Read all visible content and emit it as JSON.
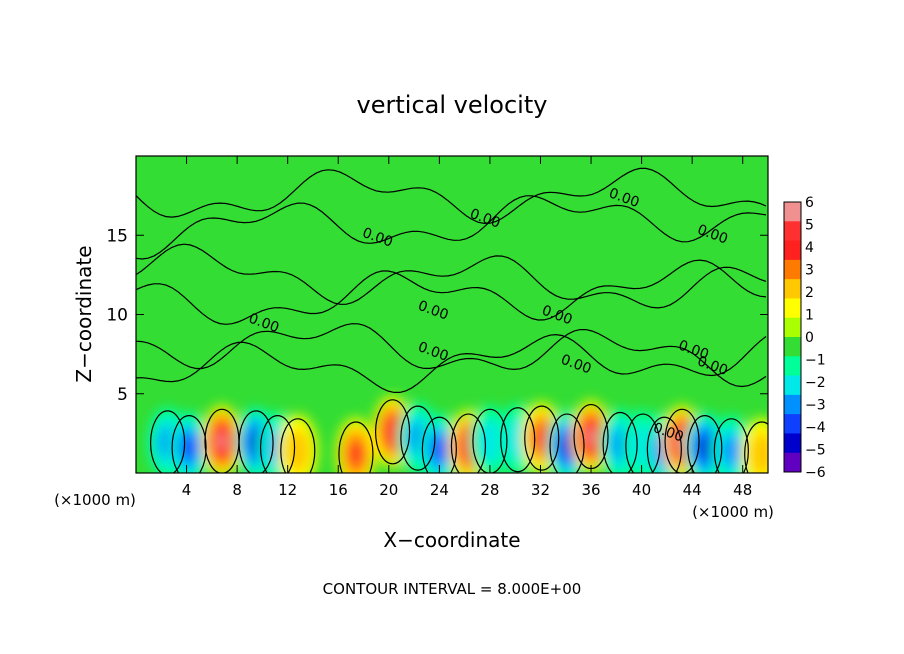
{
  "chart_data": {
    "type": "heatmap",
    "title": "vertical velocity",
    "xlabel": "X−coordinate",
    "ylabel": "Z−coordinate",
    "x_unit_left": "(×1000 m)",
    "x_unit_right": "(×1000 m)",
    "xlim": [
      0,
      50
    ],
    "ylim": [
      0,
      20
    ],
    "x_ticks": [
      4,
      8,
      12,
      16,
      20,
      24,
      28,
      32,
      36,
      40,
      44,
      48
    ],
    "y_ticks": [
      5,
      10,
      15
    ],
    "colorbar": {
      "min": -6,
      "max": 6,
      "tick_labels": [
        "6",
        "5",
        "4",
        "3",
        "2",
        "1",
        "0",
        "−1",
        "−2",
        "−3",
        "−4",
        "−5",
        "−6"
      ],
      "colors": [
        "#f09090",
        "#ff3030",
        "#ff2020",
        "#ff7a00",
        "#ffc800",
        "#ffff00",
        "#aaff00",
        "#33dd33",
        "#00ff99",
        "#00e8e8",
        "#0090ff",
        "#1040ff",
        "#0000cc",
        "#6000c0"
      ]
    },
    "background_value": 0,
    "features": [
      {
        "x": 2.5,
        "z": 1.9,
        "w": -3.0
      },
      {
        "x": 4.2,
        "z": 1.6,
        "w": -3.5
      },
      {
        "x": 6.8,
        "z": 2.0,
        "w": 6.0
      },
      {
        "x": 9.5,
        "z": 1.9,
        "w": -4.5
      },
      {
        "x": 11.2,
        "z": 1.6,
        "w": -3.0
      },
      {
        "x": 12.8,
        "z": 1.4,
        "w": 1.5
      },
      {
        "x": 17.4,
        "z": 1.2,
        "w": 3.5
      },
      {
        "x": 20.3,
        "z": 2.6,
        "w": 5.0
      },
      {
        "x": 22.3,
        "z": 2.2,
        "w": -3.0
      },
      {
        "x": 24.0,
        "z": 1.5,
        "w": -3.5
      },
      {
        "x": 26.3,
        "z": 1.7,
        "w": 5.0
      },
      {
        "x": 28.0,
        "z": 2.0,
        "w": -2.0
      },
      {
        "x": 30.2,
        "z": 2.1,
        "w": -2.0
      },
      {
        "x": 32.1,
        "z": 2.2,
        "w": 4.0
      },
      {
        "x": 34.1,
        "z": 1.7,
        "w": -5.0
      },
      {
        "x": 36.0,
        "z": 2.3,
        "w": 5.5
      },
      {
        "x": 38.3,
        "z": 1.8,
        "w": -3.0
      },
      {
        "x": 40.1,
        "z": 1.7,
        "w": -2.0
      },
      {
        "x": 41.8,
        "z": 1.5,
        "w": -3.5
      },
      {
        "x": 43.2,
        "z": 2.0,
        "w": 6.0
      },
      {
        "x": 45.0,
        "z": 1.6,
        "w": -4.5
      },
      {
        "x": 47.1,
        "z": 1.4,
        "w": -2.5
      },
      {
        "x": 49.5,
        "z": 1.2,
        "w": 2.0
      }
    ],
    "contour_labels": [
      {
        "text": "0.00",
        "x": 27.5,
        "z": 15.8
      },
      {
        "text": "0.00",
        "x": 19.0,
        "z": 14.6
      },
      {
        "text": "0.00",
        "x": 38.5,
        "z": 17.1
      },
      {
        "text": "0.00",
        "x": 45.5,
        "z": 14.8
      },
      {
        "text": "0.00",
        "x": 10.0,
        "z": 9.2
      },
      {
        "text": "0.00",
        "x": 23.4,
        "z": 10.0
      },
      {
        "text": "0.00",
        "x": 33.2,
        "z": 9.7
      },
      {
        "text": "0.00",
        "x": 23.4,
        "z": 7.4
      },
      {
        "text": "0.00",
        "x": 34.7,
        "z": 6.6
      },
      {
        "text": "0.00",
        "x": 44.0,
        "z": 7.5
      },
      {
        "text": "0.00",
        "x": 45.5,
        "z": 6.5
      },
      {
        "text": "0.00",
        "x": 42.0,
        "z": 2.3
      }
    ],
    "contour_interval_text": "CONTOUR INTERVAL =  8.000E+00"
  }
}
